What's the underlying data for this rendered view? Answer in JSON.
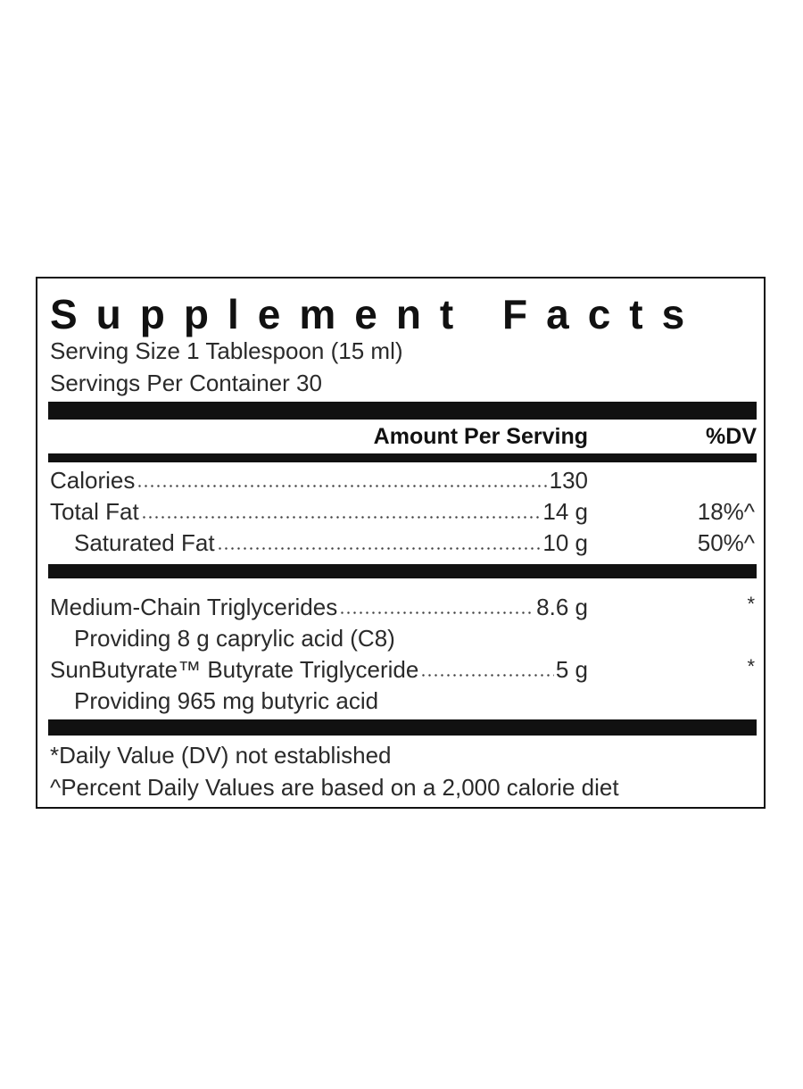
{
  "title": "Supplement Facts",
  "serving_size": "Serving Size 1 Tablespoon (15 ml)",
  "servings_per_container": "Servings Per Container 30",
  "header": {
    "amount": "Amount Per Serving",
    "dv": "%DV"
  },
  "rows": [
    {
      "name": "Calories",
      "amount": "130"
    },
    {
      "name": "Total Fat",
      "amount": "14 g",
      "dv": "18%^"
    },
    {
      "name": "Saturated Fat",
      "amount": "10 g",
      "dv": "50%^"
    },
    {
      "name": "Medium-Chain Triglycerides",
      "amount": "8.6 g",
      "dv": "*",
      "note": "Providing 8 g caprylic acid (C8)"
    },
    {
      "name": "SunButyrate™ Butyrate Triglyceride",
      "amount": "5 g",
      "dv": "*",
      "note": "Providing 965 mg butyric acid"
    }
  ],
  "footnotes": [
    "*Daily Value (DV) not established",
    "^Percent Daily Values are based on a 2,000 calorie diet"
  ]
}
